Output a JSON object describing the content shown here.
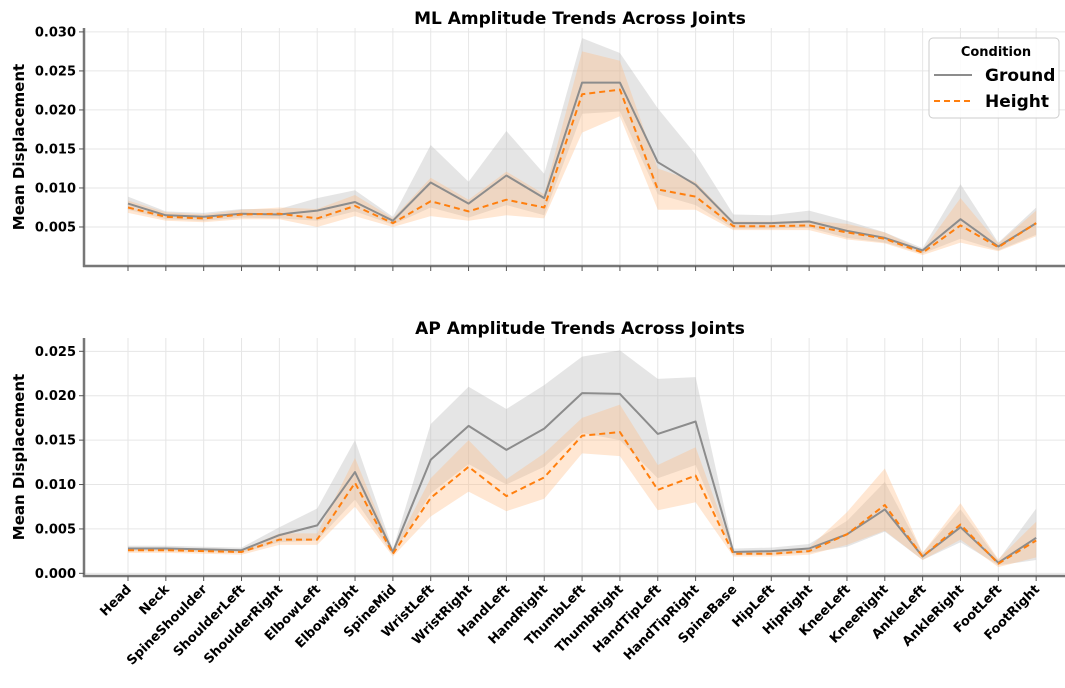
{
  "chart_data": [
    {
      "type": "line",
      "title": "ML Amplitude Trends Across Joints",
      "xlabel": "",
      "ylabel": "Mean Displacement",
      "ylim": [
        0.0,
        0.0305
      ],
      "yticks": [
        0.005,
        0.01,
        0.015,
        0.02,
        0.025,
        0.03
      ],
      "ytick_labels": [
        "0.005",
        "0.010",
        "0.015",
        "0.020",
        "0.025",
        "0.030"
      ],
      "grid": true,
      "categories": [
        "Head",
        "Neck",
        "SpineShoulder",
        "ShoulderLeft",
        "ShoulderRight",
        "ElbowLeft",
        "ElbowRight",
        "SpineMid",
        "WristLeft",
        "WristRight",
        "HandLeft",
        "HandRight",
        "ThumbLeft",
        "ThumbRight",
        "HandTipLeft",
        "HandTipRight",
        "SpineBase",
        "HipLeft",
        "HipRight",
        "KneeLeft",
        "KneeRight",
        "AnkleLeft",
        "AnkleRight",
        "FootLeft",
        "FootRight"
      ],
      "legend": {
        "title": "Condition",
        "position": "top-right"
      },
      "series": [
        {
          "name": "Ground",
          "color": "#8c8c8c",
          "band_color": "#b4b4b4",
          "line_style": "solid",
          "values": [
            0.008,
            0.0065,
            0.0063,
            0.0067,
            0.0066,
            0.0071,
            0.0082,
            0.0058,
            0.0107,
            0.008,
            0.0116,
            0.0087,
            0.0235,
            0.0235,
            0.0133,
            0.0104,
            0.0055,
            0.0055,
            0.0057,
            0.0045,
            0.0036,
            0.002,
            0.006,
            0.0025,
            0.0055
          ],
          "lower": [
            0.0072,
            0.006,
            0.0058,
            0.0062,
            0.0061,
            0.0058,
            0.007,
            0.0053,
            0.0075,
            0.0062,
            0.0078,
            0.0065,
            0.0195,
            0.0198,
            0.0092,
            0.0078,
            0.0048,
            0.0048,
            0.0049,
            0.0036,
            0.003,
            0.0016,
            0.0035,
            0.002,
            0.004
          ],
          "upper": [
            0.0089,
            0.007,
            0.0068,
            0.0073,
            0.0073,
            0.0087,
            0.0097,
            0.0063,
            0.0155,
            0.0108,
            0.0173,
            0.0118,
            0.0292,
            0.0273,
            0.0202,
            0.0143,
            0.0066,
            0.0065,
            0.0071,
            0.0058,
            0.0043,
            0.0023,
            0.0105,
            0.003,
            0.0075
          ]
        },
        {
          "name": "Height",
          "color": "#ff7f0e",
          "band_color": "#ffbb80",
          "line_style": "dashed",
          "values": [
            0.0075,
            0.0063,
            0.0061,
            0.0066,
            0.0067,
            0.0061,
            0.0077,
            0.0055,
            0.0083,
            0.007,
            0.0085,
            0.0075,
            0.022,
            0.0226,
            0.0098,
            0.0089,
            0.0051,
            0.0051,
            0.0052,
            0.0043,
            0.0035,
            0.0017,
            0.0052,
            0.0024,
            0.0055
          ],
          "lower": [
            0.0068,
            0.0058,
            0.0056,
            0.006,
            0.006,
            0.005,
            0.0064,
            0.005,
            0.0064,
            0.0058,
            0.0065,
            0.0061,
            0.0171,
            0.0192,
            0.0072,
            0.0072,
            0.0046,
            0.0046,
            0.0046,
            0.0034,
            0.0029,
            0.0014,
            0.003,
            0.0019,
            0.0038
          ],
          "upper": [
            0.0084,
            0.0069,
            0.0066,
            0.0072,
            0.0075,
            0.0073,
            0.0091,
            0.0061,
            0.0113,
            0.0085,
            0.0121,
            0.0092,
            0.0275,
            0.0263,
            0.0125,
            0.0108,
            0.0057,
            0.0057,
            0.0058,
            0.0054,
            0.0043,
            0.002,
            0.0087,
            0.0029,
            0.0071
          ]
        }
      ]
    },
    {
      "type": "line",
      "title": "AP Amplitude Trends Across Joints",
      "xlabel": "",
      "ylabel": "Mean Displacement",
      "ylim": [
        -0.0003,
        0.0265
      ],
      "yticks": [
        0.0,
        0.005,
        0.01,
        0.015,
        0.02,
        0.025
      ],
      "ytick_labels": [
        "0.000",
        "0.005",
        "0.010",
        "0.015",
        "0.020",
        "0.025"
      ],
      "grid": true,
      "categories": [
        "Head",
        "Neck",
        "SpineShoulder",
        "ShoulderLeft",
        "ShoulderRight",
        "ElbowLeft",
        "ElbowRight",
        "SpineMid",
        "WristLeft",
        "WristRight",
        "HandLeft",
        "HandRight",
        "ThumbLeft",
        "ThumbRight",
        "HandTipLeft",
        "HandTipRight",
        "SpineBase",
        "HipLeft",
        "HipRight",
        "KneeLeft",
        "KneeRight",
        "AnkleLeft",
        "AnkleRight",
        "FootLeft",
        "FootRight"
      ],
      "series": [
        {
          "name": "Ground",
          "color": "#8c8c8c",
          "band_color": "#b4b4b4",
          "line_style": "solid",
          "values": [
            0.0028,
            0.0028,
            0.0027,
            0.0026,
            0.0043,
            0.0054,
            0.0114,
            0.0024,
            0.0128,
            0.0166,
            0.0139,
            0.0163,
            0.0203,
            0.0202,
            0.0157,
            0.0171,
            0.0024,
            0.0025,
            0.0028,
            0.0044,
            0.0072,
            0.0019,
            0.0052,
            0.0012,
            0.004
          ],
          "lower": [
            0.0025,
            0.0025,
            0.0024,
            0.0023,
            0.0035,
            0.0037,
            0.0083,
            0.0021,
            0.009,
            0.0123,
            0.01,
            0.012,
            0.0158,
            0.015,
            0.0107,
            0.0122,
            0.0021,
            0.0021,
            0.0023,
            0.003,
            0.0047,
            0.0015,
            0.0035,
            0.0009,
            0.0015
          ],
          "upper": [
            0.0031,
            0.0031,
            0.003,
            0.0029,
            0.0052,
            0.0073,
            0.015,
            0.0027,
            0.0168,
            0.021,
            0.0185,
            0.0212,
            0.0244,
            0.0251,
            0.0219,
            0.0221,
            0.0028,
            0.0029,
            0.0033,
            0.0059,
            0.0103,
            0.0023,
            0.0072,
            0.0015,
            0.0073
          ]
        },
        {
          "name": "Height",
          "color": "#ff7f0e",
          "band_color": "#ffbb80",
          "line_style": "dashed",
          "values": [
            0.0026,
            0.0026,
            0.0025,
            0.0024,
            0.0038,
            0.0038,
            0.0102,
            0.0022,
            0.0085,
            0.012,
            0.0087,
            0.0108,
            0.0155,
            0.0159,
            0.0094,
            0.011,
            0.0022,
            0.0022,
            0.0025,
            0.0044,
            0.0077,
            0.0019,
            0.0055,
            0.0011,
            0.0037
          ],
          "lower": [
            0.0023,
            0.0023,
            0.0022,
            0.0021,
            0.0032,
            0.0032,
            0.0075,
            0.0019,
            0.0064,
            0.0092,
            0.007,
            0.0084,
            0.0135,
            0.0132,
            0.0071,
            0.008,
            0.0019,
            0.0019,
            0.0021,
            0.0032,
            0.0048,
            0.0015,
            0.0038,
            0.0007,
            0.0018
          ],
          "upper": [
            0.0029,
            0.0029,
            0.0028,
            0.0027,
            0.0045,
            0.0045,
            0.013,
            0.0025,
            0.0107,
            0.015,
            0.0106,
            0.0135,
            0.0175,
            0.019,
            0.0122,
            0.0142,
            0.0025,
            0.0026,
            0.0029,
            0.0069,
            0.0118,
            0.0023,
            0.0079,
            0.0016,
            0.0058
          ]
        }
      ]
    }
  ]
}
